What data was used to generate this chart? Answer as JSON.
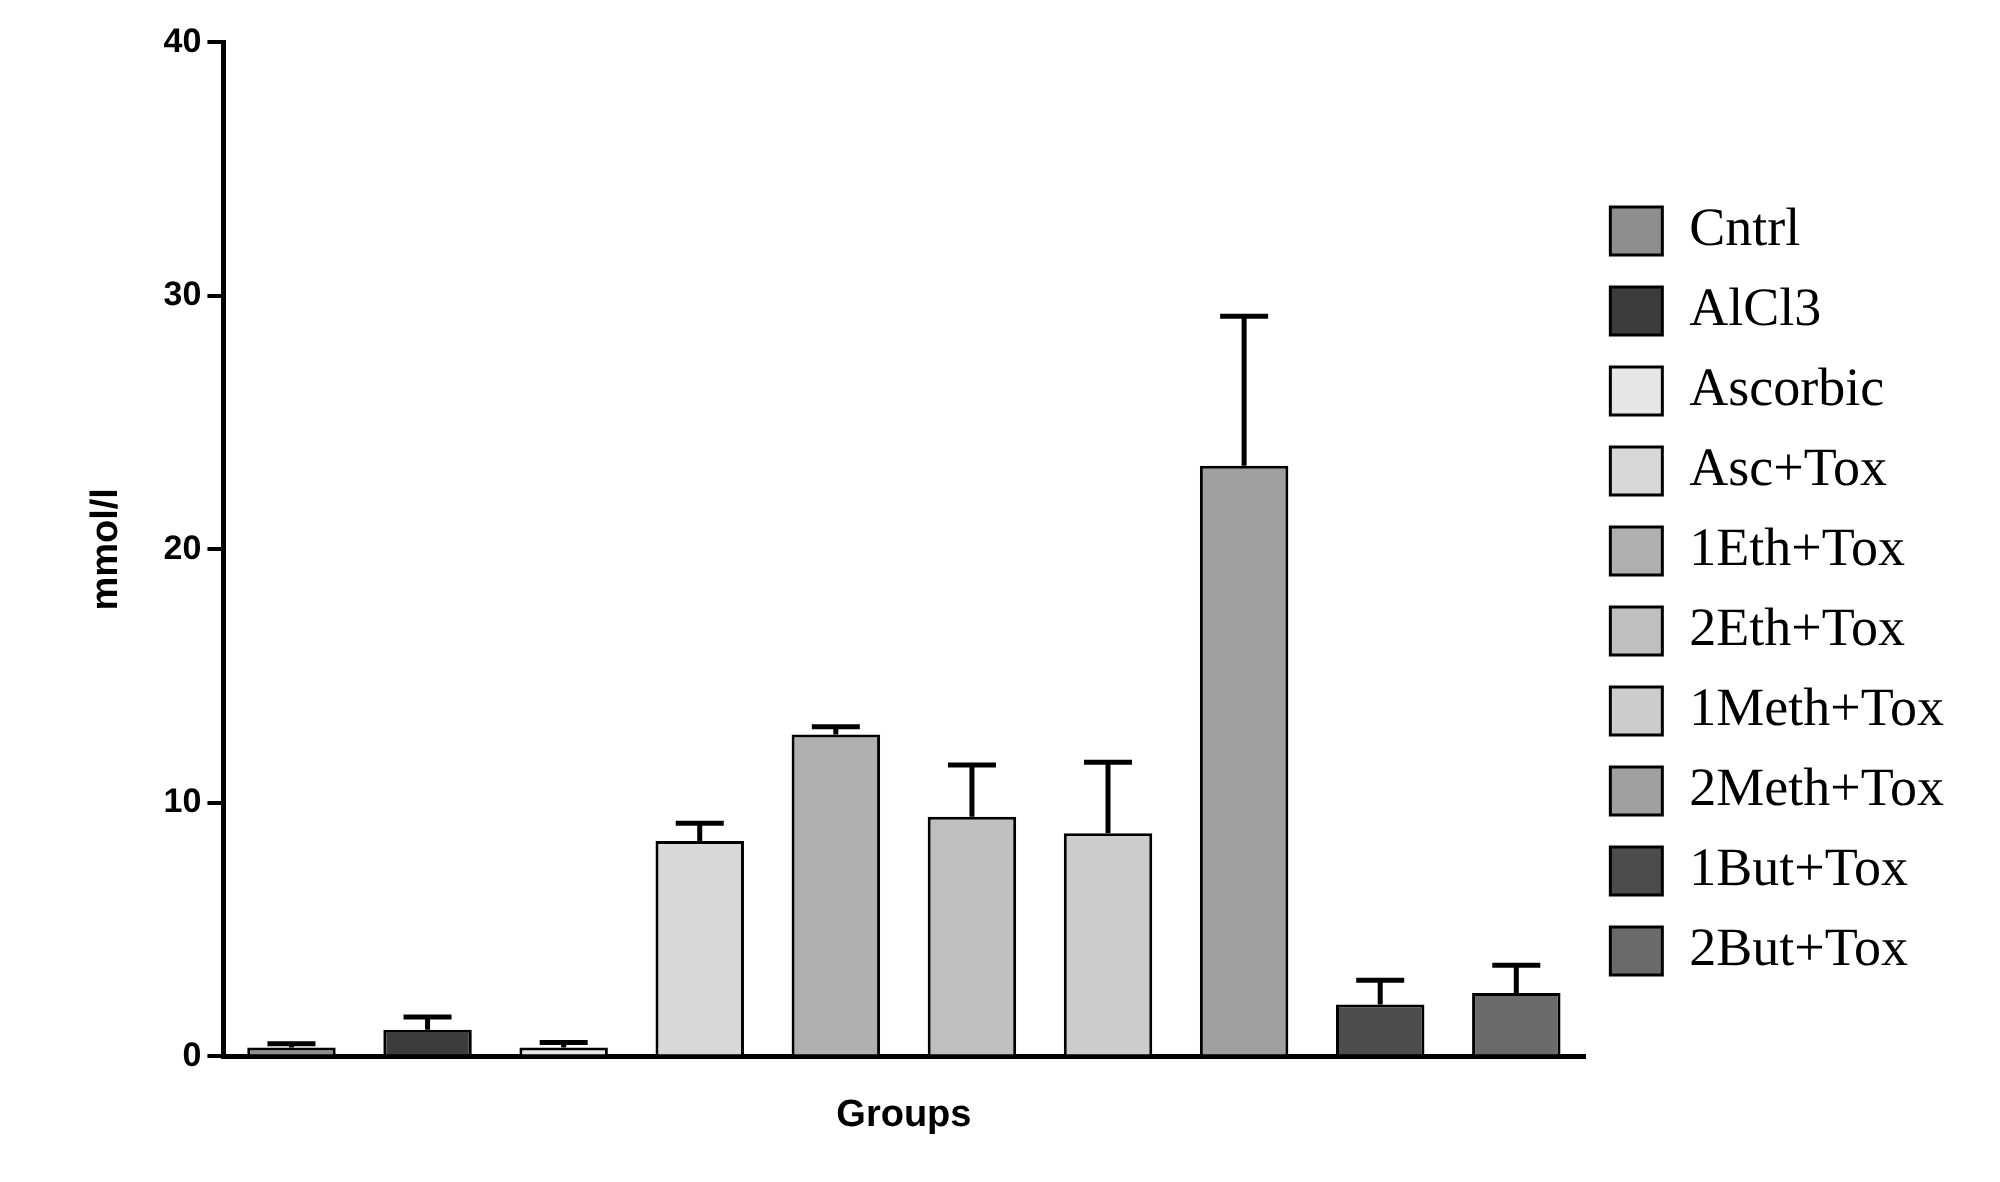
{
  "chart_data": {
    "type": "bar",
    "xlabel": "Groups",
    "ylabel": "mmol/l",
    "categories": [
      null
    ],
    "series": [
      {
        "name": "Cntrl",
        "color": "#8e8e8e",
        "values": [
          0.35
        ],
        "errors": [
          [
            0.35,
            0.5
          ]
        ]
      },
      {
        "name": "AlCl3",
        "color": "#3c3c3c",
        "values": [
          1.05
        ],
        "errors": [
          [
            1.05,
            1.55
          ]
        ]
      },
      {
        "name": "Ascorbic",
        "color": "#e6e6e6",
        "values": [
          0.35
        ],
        "errors": [
          [
            0.35,
            0.55
          ]
        ]
      },
      {
        "name": "Asc+Tox",
        "color": "#d8d8d8",
        "values": [
          8.5
        ],
        "errors": [
          [
            8.5,
            9.2
          ]
        ]
      },
      {
        "name": "1Eth+Tox",
        "color": "#b0b0b0",
        "values": [
          12.7
        ],
        "errors": [
          [
            12.7,
            13.0
          ]
        ]
      },
      {
        "name": "2Eth+Tox",
        "color": "#bfbfbf",
        "values": [
          9.45
        ],
        "errors": [
          [
            9.45,
            11.5
          ]
        ]
      },
      {
        "name": "1Meth+Tox",
        "color": "#cccccc",
        "values": [
          8.8
        ],
        "errors": [
          [
            8.8,
            11.6
          ]
        ]
      },
      {
        "name": "2Meth+Tox",
        "color": "#a0a0a0",
        "values": [
          23.3
        ],
        "errors": [
          [
            23.3,
            29.2
          ]
        ]
      },
      {
        "name": "1But+Tox",
        "color": "#4c4c4c",
        "values": [
          2.05
        ],
        "errors": [
          [
            2.05,
            3.0
          ]
        ]
      },
      {
        "name": "2But+Tox",
        "color": "#6a6a6a",
        "values": [
          2.5
        ],
        "errors": [
          [
            2.5,
            3.6
          ]
        ]
      }
    ],
    "ylim": [
      0,
      40
    ],
    "yticks": [
      0,
      10,
      20,
      30,
      40
    ],
    "grid": false,
    "legend": "right",
    "tick_labels": "y"
  }
}
